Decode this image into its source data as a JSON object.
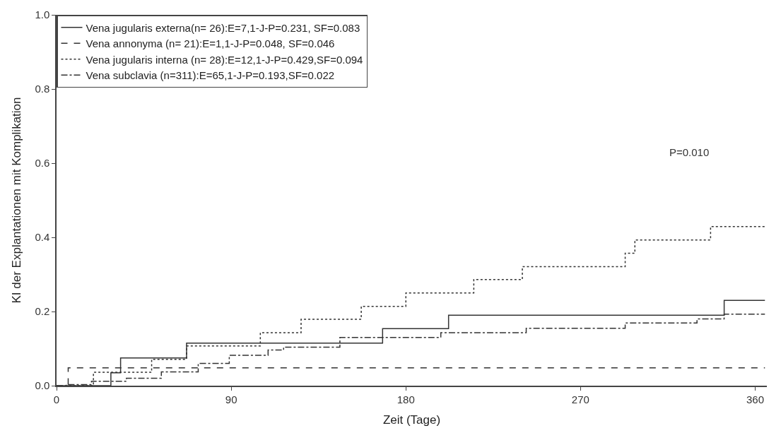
{
  "chart_data": {
    "type": "step",
    "xlabel": "Zeit (Tage)",
    "ylabel": "KI der Explantationen mit Komplikation",
    "xlim": [
      0,
      366
    ],
    "xticks": [
      0,
      90,
      180,
      270,
      360
    ],
    "ylim": [
      0,
      1
    ],
    "yticks": [
      {
        "value": 0,
        "label": "0.0"
      },
      {
        "value": 0.2,
        "label": "0.2"
      },
      {
        "value": 0.4,
        "label": "0.4"
      },
      {
        "value": 0.6,
        "label": "0.6"
      },
      {
        "value": 0.8,
        "label": "0.8"
      },
      {
        "value": 1,
        "label": "1.0"
      }
    ],
    "legend": "top left",
    "marker": "none",
    "annotations": [
      "P=0.010"
    ],
    "series": [
      {
        "name": "Vena jugularis externa(n= 26):E=7,1-J-P=0.231, SF=0.083",
        "color": "#333333",
        "line_style": "solid",
        "x": [
          0,
          28,
          33,
          67,
          168,
          202,
          344,
          365
        ],
        "values": [
          0,
          0.035,
          0.075,
          0.115,
          0.154,
          0.19,
          0.23,
          0.23
        ]
      },
      {
        "name": "Vena annonyma (n= 21):E=1,1-J-P=0.048, SF=0.046",
        "color": "#333333",
        "line_style": "dashed",
        "x": [
          0,
          6,
          365
        ],
        "values": [
          0,
          0.048,
          0.048
        ]
      },
      {
        "name": "Vena jugularis interna (n= 28):E=12,1-J-P=0.429,SF=0.094",
        "color": "#333333",
        "line_style": "dotted",
        "x": [
          0,
          19,
          49,
          67,
          105,
          126,
          157,
          180,
          215,
          240,
          293,
          298,
          337,
          365
        ],
        "values": [
          0,
          0.036,
          0.071,
          0.107,
          0.143,
          0.179,
          0.214,
          0.25,
          0.286,
          0.321,
          0.357,
          0.393,
          0.429,
          0.429
        ]
      },
      {
        "name": "Vena subclavia (n=311):E=65,1-J-P=0.193,SF=0.022",
        "color": "#333333",
        "line_style": "dashdot",
        "x": [
          0,
          5,
          18,
          36,
          54,
          73,
          89,
          109,
          117,
          146,
          198,
          242,
          256,
          293,
          330,
          344,
          365
        ],
        "values": [
          0,
          0.003,
          0.012,
          0.02,
          0.037,
          0.06,
          0.082,
          0.096,
          0.104,
          0.13,
          0.143,
          0.155,
          0.155,
          0.169,
          0.18,
          0.193,
          0.193
        ]
      }
    ]
  }
}
